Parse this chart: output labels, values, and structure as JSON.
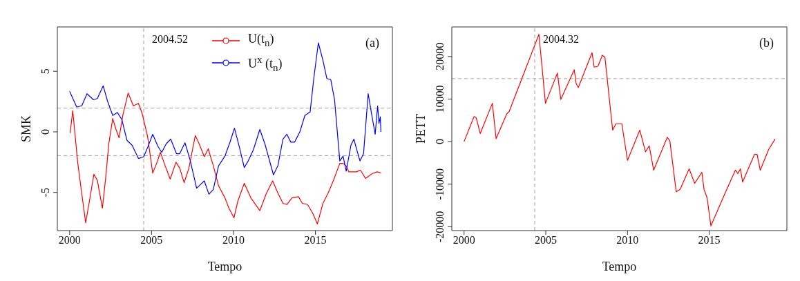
{
  "chart_data": [
    {
      "type": "line",
      "xlabel": "Tempo",
      "ylabel": "SMK",
      "xlim": [
        1999.25,
        2019.7
      ],
      "ylim": [
        -8.15,
        8.66
      ],
      "xticks": [
        2000,
        2005,
        2010,
        2015
      ],
      "yticks": [
        -5,
        0,
        5
      ],
      "grid": false,
      "legend": "top",
      "annotations": [
        "(a)"
      ],
      "ref_lines": [
        {
          "axis": "x",
          "value": 2004.52,
          "label": "2004.52",
          "color": "#a0a0a0",
          "line_style": "dashed"
        },
        {
          "axis": "y",
          "value": 1.96,
          "color": "#a0a0a0",
          "line_style": "dashed"
        },
        {
          "axis": "y",
          "value": -1.96,
          "color": "#a0a0a0",
          "line_style": "dashed"
        }
      ],
      "series": [
        {
          "name": "U(t$_{n}$)",
          "color": "#ff0000",
          "x": [
            2000.03,
            2000.19,
            2000.5,
            2000.74,
            2000.98,
            2001.21,
            2001.48,
            2001.69,
            2002.0,
            2002.2,
            2002.39,
            2002.63,
            2002.83,
            2003.02,
            2003.26,
            2003.57,
            2003.89,
            2004.2,
            2004.44,
            2004.76,
            2005.07,
            2005.31,
            2005.54,
            2005.83,
            2006.14,
            2006.49,
            2006.72,
            2006.99,
            2007.28,
            2007.67,
            2007.91,
            2008.22,
            2008.46,
            2008.77,
            2009.09,
            2009.48,
            2009.72,
            2010.03,
            2010.27,
            2010.66,
            2011.06,
            2011.61,
            2012.0,
            2012.39,
            2012.71,
            2013.02,
            2013.26,
            2013.57,
            2013.97,
            2014.2,
            2014.52,
            2014.83,
            2015.12,
            2015.46,
            2015.78,
            2016.09,
            2016.49,
            2016.69,
            2016.88,
            2017.04,
            2017.51,
            2017.75,
            2018.06,
            2018.46,
            2018.77,
            2019.0
          ],
          "values": [
            -0.1,
            1.75,
            -2.6,
            -5.1,
            -7.5,
            -5.7,
            -3.5,
            -4.0,
            -6.3,
            -3.8,
            -1.0,
            1.1,
            0.2,
            -0.5,
            1.45,
            3.2,
            2.15,
            2.35,
            1.45,
            -0.4,
            -3.4,
            -2.6,
            -1.7,
            -2.8,
            -3.9,
            -2.5,
            -3.0,
            -4.2,
            -3.0,
            -0.3,
            -1.0,
            -2.05,
            -1.4,
            -2.8,
            -4.45,
            -5.45,
            -6.3,
            -7.1,
            -5.7,
            -4.25,
            -5.45,
            -6.5,
            -5.1,
            -4.05,
            -5.05,
            -5.9,
            -6.0,
            -5.45,
            -5.35,
            -5.9,
            -6.0,
            -6.7,
            -7.6,
            -5.9,
            -5.05,
            -4.05,
            -2.6,
            -2.6,
            -2.8,
            -3.3,
            -3.3,
            -3.15,
            -3.85,
            -3.45,
            -3.3,
            -3.4
          ]
        },
        {
          "name": "U$^{x}$ (t$_{n}$)",
          "color": "#0000ff",
          "x": [
            2000.0,
            2000.43,
            2000.74,
            2001.06,
            2001.45,
            2001.69,
            2002.05,
            2002.31,
            2002.63,
            2002.91,
            2003.18,
            2003.5,
            2003.81,
            2004.2,
            2004.52,
            2004.76,
            2005.07,
            2005.39,
            2005.62,
            2005.89,
            2006.17,
            2006.52,
            2006.72,
            2007.04,
            2007.35,
            2007.75,
            2007.98,
            2008.22,
            2008.5,
            2008.77,
            2009.09,
            2009.48,
            2009.8,
            2010.06,
            2010.35,
            2010.66,
            2010.9,
            2011.21,
            2011.61,
            2011.92,
            2012.44,
            2012.71,
            2013.02,
            2013.26,
            2013.5,
            2013.73,
            2014.05,
            2014.36,
            2014.68,
            2014.91,
            2015.18,
            2015.46,
            2015.7,
            2015.94,
            2016.17,
            2016.49,
            2016.69,
            2016.88,
            2017.17,
            2017.35,
            2017.51,
            2017.72,
            2017.94,
            2018.22,
            2018.46,
            2018.65,
            2018.8,
            2018.88,
            2018.96,
            2019.0
          ],
          "values": [
            3.35,
            2.05,
            2.15,
            3.15,
            2.65,
            2.75,
            3.8,
            2.55,
            1.35,
            1.6,
            1.05,
            -0.7,
            -1.1,
            -2.2,
            -2.05,
            -1.3,
            -0.2,
            -1.2,
            -1.7,
            -1.0,
            -0.6,
            -1.8,
            -1.8,
            -0.9,
            -2.3,
            -4.65,
            -4.35,
            -4.05,
            -5.15,
            -4.75,
            -2.8,
            -2.0,
            -0.8,
            0.3,
            -1.2,
            -2.95,
            -2.4,
            -1.5,
            0.2,
            -1.0,
            -3.55,
            -2.8,
            -0.6,
            -0.2,
            -0.85,
            -0.85,
            0.0,
            1.35,
            1.65,
            4.5,
            7.35,
            5.9,
            4.4,
            4.3,
            2.65,
            -2.4,
            -2.0,
            -3.25,
            -1.1,
            -0.6,
            -1.4,
            -2.4,
            -1.8,
            3.15,
            1.25,
            -0.2,
            2.15,
            0.7,
            1.25,
            0.0
          ]
        }
      ]
    },
    {
      "type": "line",
      "xlabel": "Tempo",
      "ylabel": "PETT",
      "xlim": [
        1999.25,
        2019.75
      ],
      "ylim": [
        -20910,
        26950
      ],
      "xticks": [
        2000,
        2005,
        2010,
        2015
      ],
      "yticks": [
        -20000,
        -10000,
        0,
        10000,
        20000
      ],
      "grid": false,
      "annotations": [
        "(b)"
      ],
      "ref_lines": [
        {
          "axis": "x",
          "value": 2004.32,
          "label": "2004.32",
          "color": "#a0a0a0",
          "line_style": "dashed"
        },
        {
          "axis": "y",
          "value": 14800,
          "color": "#a0a0a0",
          "line_style": "dashed"
        }
      ],
      "series": [
        {
          "color": "#ff0000",
          "x": [
            2000.0,
            2000.61,
            2000.74,
            2000.99,
            2001.73,
            2001.96,
            2002.62,
            2002.75,
            2004.58,
            2004.98,
            2005.71,
            2005.92,
            2006.74,
            2006.86,
            2006.99,
            2007.83,
            2007.96,
            2008.19,
            2008.46,
            2008.62,
            2009.09,
            2009.29,
            2009.65,
            2010.0,
            2010.75,
            2011.1,
            2011.33,
            2011.6,
            2012.43,
            2012.59,
            2012.98,
            2013.22,
            2013.77,
            2014.11,
            2014.55,
            2014.68,
            2014.87,
            2015.1,
            2015.97,
            2016.6,
            2016.75,
            2016.91,
            2017.04,
            2017.77,
            2017.93,
            2018.12,
            2018.64,
            2019.03
          ],
          "values": [
            0,
            5900,
            5600,
            1900,
            9000,
            700,
            6600,
            7000,
            25200,
            9000,
            16100,
            9900,
            16900,
            13600,
            12700,
            20900,
            17500,
            17700,
            20300,
            19800,
            2700,
            4200,
            4200,
            -4400,
            2700,
            -2400,
            -1000,
            -6700,
            1000,
            200,
            -11800,
            -11200,
            -6400,
            -9800,
            -7200,
            -11200,
            -13200,
            -19800,
            -12100,
            -6700,
            -7500,
            -6400,
            -9500,
            -3000,
            -3000,
            -6700,
            -1800,
            600
          ]
        }
      ]
    }
  ]
}
